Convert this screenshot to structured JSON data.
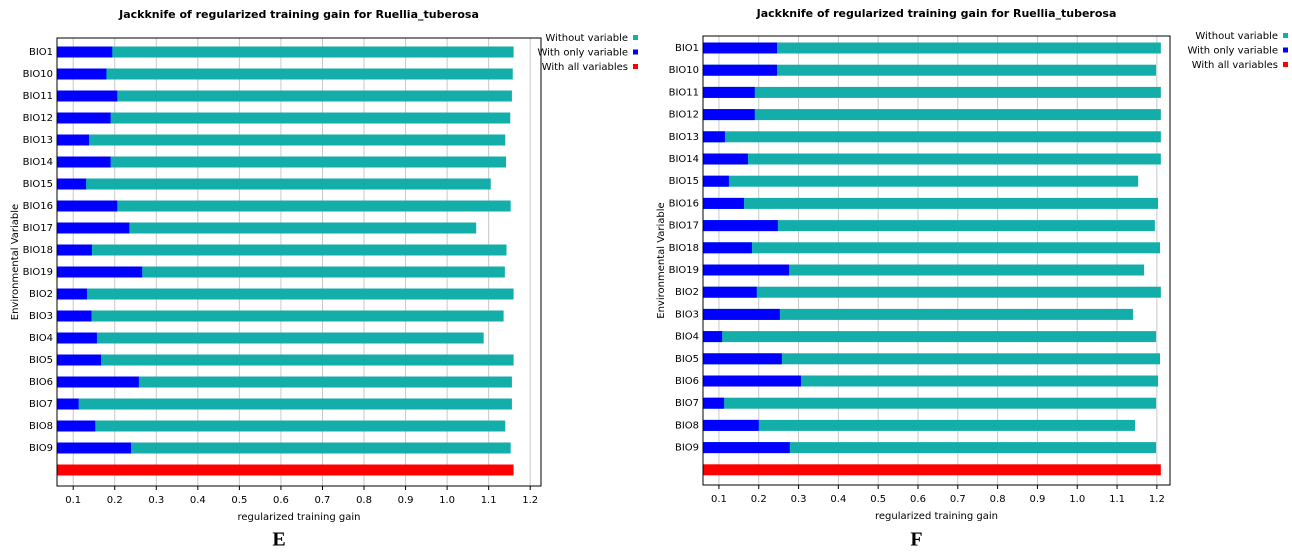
{
  "chart_data": [
    {
      "type": "hbar",
      "title": "Jackknife of regularized training gain for Ruellia_tuberosa",
      "xlabel": "regularized training gain",
      "ylabel": "Environmental Variable",
      "panel_label": "E",
      "categories": [
        "BIO1",
        "BIO10",
        "BIO11",
        "BIO12",
        "BIO13",
        "BIO14",
        "BIO15",
        "BIO16",
        "BIO17",
        "BIO18",
        "BIO19",
        "BIO2",
        "BIO3",
        "BIO4",
        "BIO5",
        "BIO6",
        "BIO7",
        "BIO8",
        "BIO9",
        null
      ],
      "series": [
        {
          "name": "Without variable",
          "color": "#13aeaa",
          "values": [
            1.16,
            1.158,
            1.156,
            1.152,
            1.14,
            1.142,
            1.105,
            1.153,
            1.07,
            1.143,
            1.139,
            1.16,
            1.136,
            1.088,
            1.16,
            1.156,
            1.156,
            1.14,
            1.153,
            null
          ]
        },
        {
          "name": "With only variable",
          "color": "#0000ff",
          "values": [
            0.194,
            0.18,
            0.206,
            0.19,
            0.138,
            0.19,
            0.131,
            0.206,
            0.235,
            0.145,
            0.266,
            0.133,
            0.144,
            0.157,
            0.167,
            0.258,
            0.113,
            0.153,
            0.239,
            null
          ]
        },
        {
          "name": "With all variables",
          "color": "#ff0000",
          "values": [
            null,
            null,
            null,
            null,
            null,
            null,
            null,
            null,
            null,
            null,
            null,
            null,
            null,
            null,
            null,
            null,
            null,
            null,
            null,
            1.16
          ]
        }
      ],
      "xlim": [
        0.061,
        1.226
      ],
      "xticks": [
        0.1,
        0.2,
        0.3,
        0.4,
        0.5,
        0.6,
        0.7,
        0.8,
        0.9,
        {
          "value": 1,
          "label": "1.0"
        },
        1.1,
        1.2
      ],
      "grid": true
    },
    {
      "type": "hbar",
      "title": "Jackknife of regularized training gain for Ruellia_tuberosa",
      "xlabel": "regularized training gain",
      "ylabel": "Environmental Variable",
      "panel_label": "F",
      "categories": [
        "BIO1",
        "BIO10",
        "BIO11",
        "BIO12",
        "BIO13",
        "BIO14",
        "BIO15",
        "BIO16",
        "BIO17",
        "BIO18",
        "BIO19",
        "BIO2",
        "BIO3",
        "BIO4",
        "BIO5",
        "BIO6",
        "BIO7",
        "BIO8",
        "BIO9",
        null
      ],
      "series": [
        {
          "name": "Without variable",
          "color": "#13aeaa",
          "values": [
            1.21,
            1.198,
            1.21,
            1.21,
            1.21,
            1.21,
            1.153,
            1.203,
            1.195,
            1.208,
            1.168,
            1.21,
            1.14,
            1.198,
            1.208,
            1.203,
            1.198,
            1.145,
            1.198,
            null
          ]
        },
        {
          "name": "With only variable",
          "color": "#0000ff",
          "values": [
            0.246,
            0.246,
            0.19,
            0.19,
            0.115,
            0.173,
            0.125,
            0.163,
            0.248,
            0.183,
            0.276,
            0.195,
            0.253,
            0.108,
            0.258,
            0.306,
            0.113,
            0.2,
            0.278,
            null
          ]
        },
        {
          "name": "With all variables",
          "color": "#ff0000",
          "values": [
            null,
            null,
            null,
            null,
            null,
            null,
            null,
            null,
            null,
            null,
            null,
            null,
            null,
            null,
            null,
            null,
            null,
            null,
            null,
            1.21
          ]
        }
      ],
      "xlim": [
        0.06,
        1.233
      ],
      "xticks": [
        0.1,
        0.2,
        0.3,
        0.4,
        0.5,
        0.6,
        0.7,
        0.8,
        0.9,
        {
          "value": 1,
          "label": "1.0"
        },
        1.1,
        1.2
      ],
      "grid": true
    }
  ]
}
